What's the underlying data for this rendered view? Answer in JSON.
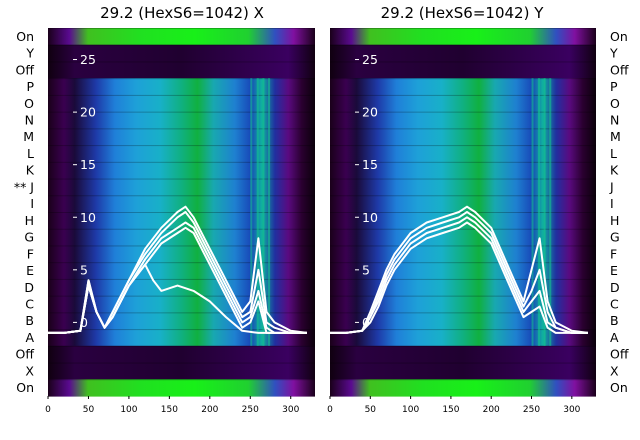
{
  "chart_data": [
    {
      "type": "heatmap",
      "title": "29.2 (HexS6=1042) X",
      "x_ticks": [
        0,
        50,
        100,
        150,
        200,
        250,
        300
      ],
      "y_ticks": [
        0,
        5,
        10,
        15,
        20,
        25
      ],
      "xlim": [
        0,
        330
      ],
      "ylim": [
        -7,
        28
      ],
      "row_labels_top_to_bottom": [
        "On",
        "Y",
        "Off",
        "P",
        "O",
        "N",
        "M",
        "L",
        "K",
        "** J",
        "I",
        "H",
        "G",
        "F",
        "E",
        "D",
        "C",
        "B",
        "A",
        "Off",
        "X",
        "On"
      ],
      "grid": false,
      "traces": [
        {
          "x": [
            0,
            20,
            40,
            50,
            60,
            70,
            80,
            100,
            120,
            140,
            160,
            170,
            180,
            200,
            220,
            240,
            250,
            260,
            270,
            280,
            300,
            320
          ],
          "y": [
            -1,
            -1,
            -0.8,
            4,
            1,
            -0.5,
            1,
            4,
            7,
            9,
            10.5,
            11,
            10,
            7,
            4,
            1,
            2,
            8,
            1,
            0,
            -0.8,
            -1
          ]
        },
        {
          "x": [
            0,
            20,
            40,
            50,
            60,
            70,
            80,
            100,
            120,
            140,
            160,
            170,
            180,
            200,
            220,
            240,
            250,
            260,
            270,
            280,
            300,
            320
          ],
          "y": [
            -1,
            -1,
            -0.8,
            4,
            1,
            -0.5,
            1,
            4,
            6.5,
            8.5,
            10,
            10.5,
            9.5,
            6.5,
            3.5,
            0.5,
            1,
            5,
            0,
            -0.5,
            -1,
            -1
          ]
        },
        {
          "x": [
            0,
            20,
            40,
            50,
            60,
            70,
            80,
            100,
            120,
            140,
            160,
            170,
            180,
            200,
            220,
            240,
            250,
            260,
            270,
            280,
            300,
            320
          ],
          "y": [
            -1,
            -1,
            -0.8,
            3.5,
            1,
            -0.5,
            0.5,
            3.5,
            6,
            8,
            9,
            9.5,
            9,
            6,
            3,
            0,
            0.5,
            3,
            -0.5,
            -1,
            -1,
            -1
          ]
        },
        {
          "x": [
            0,
            20,
            40,
            50,
            60,
            70,
            80,
            100,
            120,
            140,
            160,
            170,
            180,
            200,
            220,
            240,
            250,
            260,
            270,
            280,
            300,
            320
          ],
          "y": [
            -1,
            -1,
            -0.8,
            3.5,
            1,
            -0.5,
            0.5,
            3.5,
            5.5,
            7.5,
            8.5,
            9,
            8.5,
            5.5,
            2.5,
            -0.5,
            0,
            2,
            -1,
            -1,
            -1,
            -1
          ]
        },
        {
          "x": [
            0,
            20,
            40,
            50,
            60,
            70,
            80,
            100,
            120,
            130,
            140,
            160,
            180,
            200,
            220,
            240,
            260,
            280,
            300,
            320
          ],
          "y": [
            -1,
            -1,
            -0.8,
            3.5,
            1,
            -0.5,
            0.5,
            3.5,
            5.5,
            4,
            3,
            3.5,
            3,
            2,
            0.5,
            -0.8,
            -1,
            -1,
            -1,
            -1
          ]
        }
      ]
    },
    {
      "type": "heatmap",
      "title": "29.2 (HexS6=1042) Y",
      "x_ticks": [
        0,
        50,
        100,
        150,
        200,
        250,
        300
      ],
      "y_ticks": [
        0,
        5,
        10,
        15,
        20,
        25
      ],
      "xlim": [
        0,
        330
      ],
      "ylim": [
        -7,
        28
      ],
      "row_labels_top_to_bottom": [
        "On",
        "Y",
        "Off",
        "P",
        "O",
        "N",
        "M",
        "L",
        "K",
        "J",
        "I",
        "H",
        "G",
        "F",
        "E",
        "D",
        "C",
        "B",
        "A",
        "Off",
        "X",
        "On"
      ],
      "grid": false,
      "traces": [
        {
          "x": [
            0,
            20,
            40,
            50,
            60,
            70,
            80,
            100,
            120,
            140,
            160,
            170,
            180,
            200,
            220,
            240,
            250,
            260,
            270,
            280,
            300,
            320
          ],
          "y": [
            -1,
            -1,
            -0.8,
            1,
            3,
            5,
            6.5,
            8.5,
            9.5,
            10,
            10.5,
            11,
            10.5,
            9,
            5.5,
            2,
            5,
            8,
            2,
            0,
            -0.8,
            -1
          ]
        },
        {
          "x": [
            0,
            20,
            40,
            50,
            60,
            70,
            80,
            100,
            120,
            140,
            160,
            170,
            180,
            200,
            220,
            240,
            250,
            260,
            270,
            280,
            300,
            320
          ],
          "y": [
            -1,
            -1,
            -0.8,
            0.5,
            2.5,
            4.5,
            6,
            8,
            9,
            9.5,
            10,
            10.5,
            10,
            8.5,
            5,
            1.5,
            3,
            5,
            1,
            -0.5,
            -1,
            -1
          ]
        },
        {
          "x": [
            0,
            20,
            40,
            50,
            60,
            70,
            80,
            100,
            120,
            140,
            160,
            170,
            180,
            200,
            220,
            240,
            250,
            260,
            270,
            280,
            300,
            320
          ],
          "y": [
            -1,
            -1,
            -0.8,
            0.5,
            2,
            4,
            5.5,
            7.5,
            8.5,
            9,
            9.5,
            10,
            9.5,
            8,
            4.5,
            1,
            2,
            3,
            0,
            -0.5,
            -1,
            -1
          ]
        },
        {
          "x": [
            0,
            20,
            40,
            50,
            60,
            70,
            80,
            100,
            120,
            140,
            160,
            170,
            180,
            200,
            220,
            240,
            250,
            260,
            270,
            280,
            300,
            320
          ],
          "y": [
            -1,
            -1,
            -0.8,
            0,
            1.5,
            3.5,
            5,
            7,
            8,
            8.5,
            9,
            9.5,
            9,
            7.5,
            4,
            0.5,
            1,
            1.5,
            -0.5,
            -1,
            -1,
            -1
          ]
        }
      ]
    }
  ]
}
